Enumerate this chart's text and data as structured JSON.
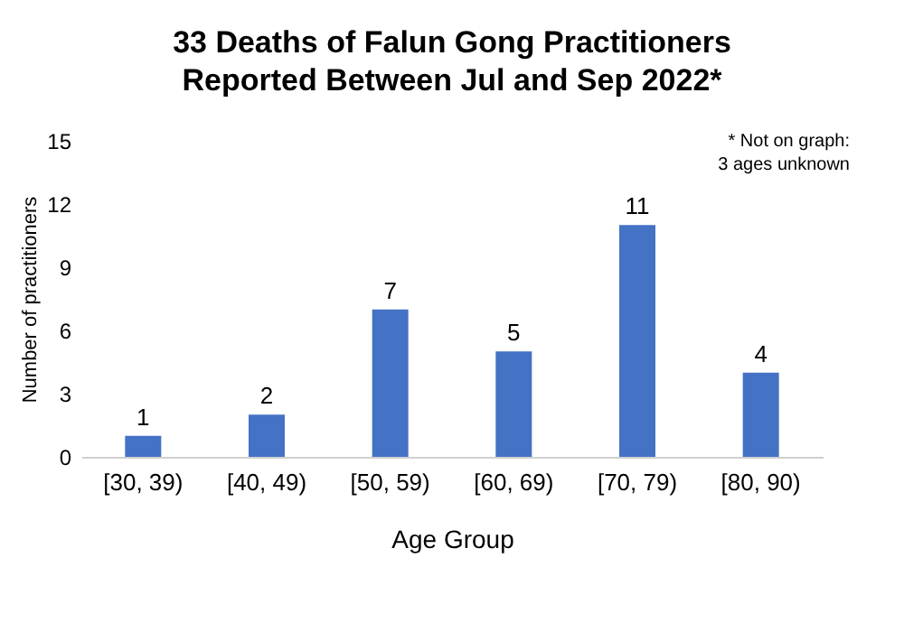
{
  "chart_data": {
    "type": "bar",
    "title": "33 Deaths of Falun Gong Practitioners Reported Between Jul and Sep 2022*",
    "xlabel": "Age Group",
    "ylabel": "Number of practitioners",
    "categories": [
      "[30, 39)",
      "[40, 49)",
      "[50, 59)",
      "[60, 69)",
      "[70, 79)",
      "[80, 90)"
    ],
    "values": [
      1,
      2,
      7,
      5,
      11,
      4
    ],
    "color": "#4472c4",
    "ylim": [
      0,
      15
    ],
    "yticks": [
      0,
      3,
      6,
      9,
      12,
      15
    ],
    "grid": false,
    "data_labels": true,
    "annotations": [
      "* Not on graph: 3 ages unknown"
    ]
  }
}
